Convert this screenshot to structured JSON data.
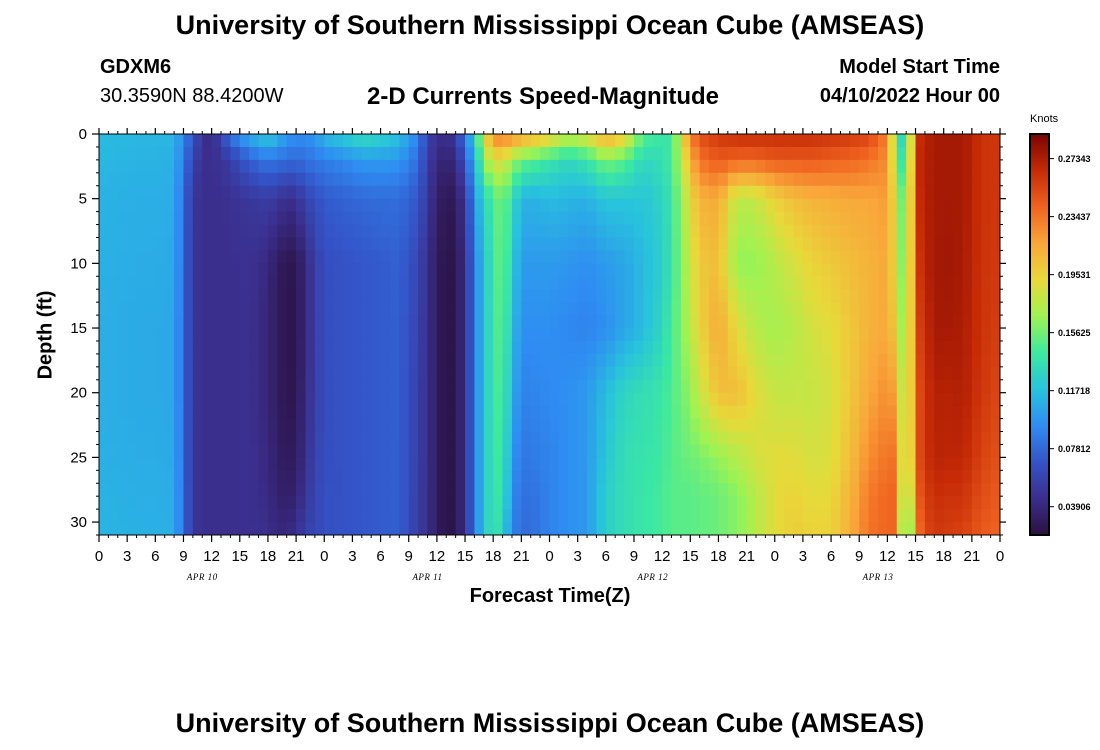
{
  "title": "University of Southern Mississippi Ocean Cube (AMSEAS)",
  "footer_title": "University of Southern Mississippi Ocean Cube (AMSEAS)",
  "station": {
    "name": "GDXM6",
    "coords": "30.3590N  88.4200W"
  },
  "model_start": {
    "label": "Model Start Time",
    "value": "04/10/2022 Hour 00"
  },
  "colors": {
    "ramp": [
      "#2a1140",
      "#3b2e8c",
      "#3454c8",
      "#2f8cf2",
      "#28c3dc",
      "#3ce9a0",
      "#9ef352",
      "#e8d93a",
      "#f9a63a",
      "#f06220",
      "#c52a06",
      "#7a0403"
    ]
  },
  "chart_data": {
    "type": "heatmap",
    "title": "2-D Currents Speed-Magnitude",
    "xlabel": "Forecast Time(Z)",
    "ylabel": "Depth (ft)",
    "x_hours_range": [
      0,
      96
    ],
    "x_ticks": [
      "0",
      "3",
      "6",
      "9",
      "12",
      "15",
      "18",
      "21",
      "0",
      "3",
      "6",
      "9",
      "12",
      "15",
      "18",
      "21",
      "0",
      "3",
      "6",
      "9",
      "12",
      "15",
      "18",
      "21",
      "0",
      "3",
      "6",
      "9",
      "12",
      "15",
      "18",
      "21",
      "0"
    ],
    "day_labels": [
      "APR 10",
      "APR 11",
      "APR 12",
      "APR 13"
    ],
    "y_range": [
      0,
      31
    ],
    "y_ticks": [
      0,
      5,
      10,
      15,
      20,
      25,
      30
    ],
    "colorbar": {
      "label": "Knots",
      "min": 0.02,
      "max": 0.29,
      "ticks": [
        "0.27343",
        "0.23437",
        "0.19531",
        "0.15625",
        "0.11718",
        "0.07812",
        "0.03906"
      ]
    },
    "hours": [
      0,
      2,
      4,
      6,
      8,
      10,
      11,
      12,
      13,
      14,
      16,
      18,
      19,
      20,
      21,
      22,
      23,
      24,
      26,
      28,
      30,
      32,
      34,
      35,
      36,
      37,
      38,
      39,
      40,
      41,
      42,
      43,
      44,
      45,
      46,
      47,
      48,
      50,
      52,
      54,
      56,
      58,
      60,
      61,
      62,
      63,
      64,
      66,
      68,
      70,
      72,
      74,
      76,
      78,
      80,
      82,
      84,
      85,
      86,
      87,
      88,
      89,
      90,
      92,
      94,
      96
    ],
    "depths_ft": [
      0,
      2,
      5,
      10,
      15,
      20,
      25,
      28,
      31
    ],
    "speed_knots": [
      [
        0.115,
        0.113,
        0.111,
        0.11,
        0.109,
        0.109,
        0.11,
        0.111,
        0.112
      ],
      [
        0.114,
        0.112,
        0.11,
        0.109,
        0.108,
        0.108,
        0.109,
        0.11,
        0.111
      ],
      [
        0.113,
        0.111,
        0.109,
        0.108,
        0.107,
        0.107,
        0.108,
        0.109,
        0.11
      ],
      [
        0.113,
        0.111,
        0.109,
        0.108,
        0.107,
        0.107,
        0.108,
        0.109,
        0.11
      ],
      [
        0.112,
        0.11,
        0.108,
        0.107,
        0.106,
        0.106,
        0.107,
        0.108,
        0.109
      ],
      [
        0.07,
        0.06,
        0.05,
        0.05,
        0.05,
        0.05,
        0.05,
        0.05,
        0.05
      ],
      [
        0.045,
        0.045,
        0.045,
        0.045,
        0.045,
        0.045,
        0.045,
        0.045,
        0.045
      ],
      [
        0.042,
        0.045,
        0.045,
        0.045,
        0.045,
        0.045,
        0.045,
        0.045,
        0.045
      ],
      [
        0.06,
        0.048,
        0.045,
        0.045,
        0.045,
        0.045,
        0.045,
        0.045,
        0.045
      ],
      [
        0.085,
        0.055,
        0.047,
        0.045,
        0.045,
        0.045,
        0.045,
        0.045,
        0.045
      ],
      [
        0.11,
        0.075,
        0.05,
        0.047,
        0.046,
        0.046,
        0.046,
        0.046,
        0.046
      ],
      [
        0.125,
        0.085,
        0.055,
        0.04,
        0.038,
        0.038,
        0.04,
        0.042,
        0.045
      ],
      [
        0.115,
        0.082,
        0.05,
        0.03,
        0.03,
        0.03,
        0.032,
        0.035,
        0.04
      ],
      [
        0.1,
        0.08,
        0.045,
        0.025,
        0.024,
        0.025,
        0.028,
        0.032,
        0.04
      ],
      [
        0.095,
        0.078,
        0.045,
        0.025,
        0.024,
        0.025,
        0.03,
        0.035,
        0.045
      ],
      [
        0.095,
        0.082,
        0.06,
        0.04,
        0.04,
        0.042,
        0.045,
        0.05,
        0.058
      ],
      [
        0.1,
        0.085,
        0.065,
        0.055,
        0.055,
        0.055,
        0.058,
        0.06,
        0.06
      ],
      [
        0.115,
        0.088,
        0.072,
        0.065,
        0.065,
        0.065,
        0.065,
        0.066,
        0.066
      ],
      [
        0.125,
        0.092,
        0.075,
        0.068,
        0.068,
        0.068,
        0.068,
        0.068,
        0.068
      ],
      [
        0.135,
        0.1,
        0.078,
        0.07,
        0.07,
        0.07,
        0.07,
        0.07,
        0.07
      ],
      [
        0.13,
        0.1,
        0.08,
        0.072,
        0.072,
        0.072,
        0.072,
        0.072,
        0.072
      ],
      [
        0.118,
        0.098,
        0.08,
        0.075,
        0.074,
        0.074,
        0.074,
        0.074,
        0.074
      ],
      [
        0.09,
        0.08,
        0.07,
        0.06,
        0.058,
        0.056,
        0.055,
        0.054,
        0.054
      ],
      [
        0.06,
        0.055,
        0.05,
        0.045,
        0.045,
        0.045,
        0.045,
        0.045,
        0.045
      ],
      [
        0.045,
        0.04,
        0.035,
        0.03,
        0.03,
        0.03,
        0.03,
        0.03,
        0.03
      ],
      [
        0.045,
        0.035,
        0.025,
        0.022,
        0.022,
        0.022,
        0.022,
        0.022,
        0.022
      ],
      [
        0.05,
        0.04,
        0.03,
        0.025,
        0.025,
        0.025,
        0.025,
        0.025,
        0.025
      ],
      [
        0.09,
        0.07,
        0.05,
        0.045,
        0.045,
        0.045,
        0.045,
        0.045,
        0.045
      ],
      [
        0.125,
        0.11,
        0.095,
        0.085,
        0.085,
        0.085,
        0.085,
        0.085,
        0.085
      ],
      [
        0.185,
        0.16,
        0.13,
        0.12,
        0.12,
        0.12,
        0.12,
        0.12,
        0.12
      ],
      [
        0.23,
        0.19,
        0.145,
        0.14,
        0.14,
        0.14,
        0.14,
        0.14,
        0.14
      ],
      [
        0.235,
        0.185,
        0.16,
        0.16,
        0.155,
        0.15,
        0.145,
        0.14,
        0.13
      ],
      [
        0.228,
        0.17,
        0.135,
        0.125,
        0.118,
        0.11,
        0.1,
        0.095,
        0.09
      ],
      [
        0.22,
        0.155,
        0.112,
        0.1,
        0.095,
        0.09,
        0.085,
        0.082,
        0.08
      ],
      [
        0.215,
        0.15,
        0.11,
        0.1,
        0.095,
        0.09,
        0.085,
        0.082,
        0.08
      ],
      [
        0.21,
        0.145,
        0.112,
        0.1,
        0.095,
        0.092,
        0.088,
        0.085,
        0.085
      ],
      [
        0.2,
        0.14,
        0.115,
        0.1,
        0.095,
        0.093,
        0.09,
        0.09,
        0.09
      ],
      [
        0.18,
        0.13,
        0.112,
        0.098,
        0.092,
        0.095,
        0.095,
        0.095,
        0.095
      ],
      [
        0.19,
        0.14,
        0.11,
        0.095,
        0.09,
        0.1,
        0.1,
        0.1,
        0.1
      ],
      [
        0.22,
        0.16,
        0.12,
        0.1,
        0.095,
        0.115,
        0.12,
        0.125,
        0.125
      ],
      [
        0.2,
        0.15,
        0.12,
        0.105,
        0.105,
        0.13,
        0.135,
        0.135,
        0.135
      ],
      [
        0.15,
        0.13,
        0.12,
        0.115,
        0.115,
        0.135,
        0.138,
        0.14,
        0.14
      ],
      [
        0.14,
        0.135,
        0.128,
        0.125,
        0.13,
        0.14,
        0.142,
        0.145,
        0.145
      ],
      [
        0.14,
        0.145,
        0.14,
        0.14,
        0.145,
        0.148,
        0.15,
        0.15,
        0.15
      ],
      [
        0.185,
        0.175,
        0.165,
        0.16,
        0.16,
        0.155,
        0.152,
        0.15,
        0.15
      ],
      [
        0.23,
        0.21,
        0.19,
        0.18,
        0.175,
        0.165,
        0.155,
        0.15,
        0.15
      ],
      [
        0.25,
        0.235,
        0.21,
        0.2,
        0.195,
        0.18,
        0.158,
        0.152,
        0.152
      ],
      [
        0.26,
        0.245,
        0.215,
        0.205,
        0.215,
        0.205,
        0.165,
        0.155,
        0.155
      ],
      [
        0.265,
        0.24,
        0.175,
        0.165,
        0.19,
        0.205,
        0.175,
        0.162,
        0.162
      ],
      [
        0.265,
        0.24,
        0.18,
        0.165,
        0.175,
        0.19,
        0.185,
        0.175,
        0.175
      ],
      [
        0.265,
        0.245,
        0.195,
        0.175,
        0.17,
        0.18,
        0.19,
        0.19,
        0.19
      ],
      [
        0.265,
        0.245,
        0.205,
        0.185,
        0.175,
        0.18,
        0.19,
        0.195,
        0.198
      ],
      [
        0.265,
        0.245,
        0.21,
        0.195,
        0.185,
        0.18,
        0.185,
        0.19,
        0.195
      ],
      [
        0.262,
        0.242,
        0.212,
        0.2,
        0.19,
        0.185,
        0.188,
        0.192,
        0.195
      ],
      [
        0.26,
        0.24,
        0.215,
        0.205,
        0.2,
        0.2,
        0.205,
        0.21,
        0.212
      ],
      [
        0.255,
        0.235,
        0.215,
        0.21,
        0.21,
        0.215,
        0.225,
        0.232,
        0.235
      ],
      [
        0.23,
        0.225,
        0.22,
        0.215,
        0.215,
        0.225,
        0.235,
        0.24,
        0.24
      ],
      [
        0.15,
        0.16,
        0.18,
        0.185,
        0.195,
        0.215,
        0.235,
        0.24,
        0.24
      ],
      [
        0.11,
        0.12,
        0.135,
        0.14,
        0.145,
        0.15,
        0.145,
        0.13,
        0.11
      ],
      [
        0.26,
        0.262,
        0.26,
        0.255,
        0.25,
        0.245,
        0.245,
        0.24,
        0.23
      ],
      [
        0.27,
        0.272,
        0.272,
        0.27,
        0.265,
        0.26,
        0.26,
        0.255,
        0.25
      ],
      [
        0.275,
        0.275,
        0.275,
        0.275,
        0.275,
        0.272,
        0.27,
        0.265,
        0.26
      ],
      [
        0.276,
        0.276,
        0.276,
        0.278,
        0.276,
        0.27,
        0.268,
        0.262,
        0.258
      ],
      [
        0.276,
        0.276,
        0.276,
        0.275,
        0.274,
        0.272,
        0.268,
        0.262,
        0.255
      ],
      [
        0.262,
        0.262,
        0.262,
        0.262,
        0.262,
        0.26,
        0.255,
        0.25,
        0.245
      ],
      [
        0.26,
        0.26,
        0.26,
        0.258,
        0.256,
        0.252,
        0.248,
        0.244,
        0.24
      ]
    ]
  }
}
